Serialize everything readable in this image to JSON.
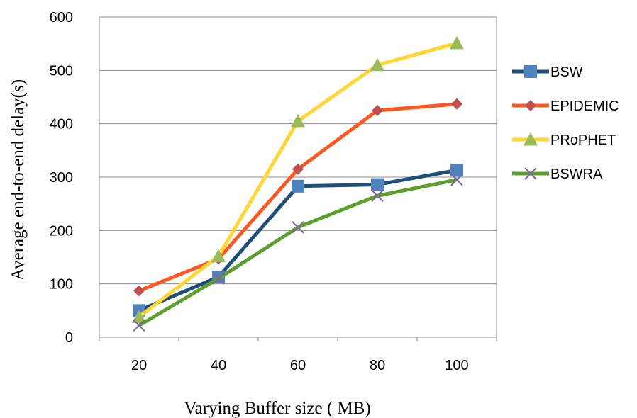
{
  "chart_data": {
    "type": "line",
    "title": "",
    "xlabel": "Varying Buffer size ( MB)",
    "ylabel": "Average end-to-end  delay(s)",
    "categories": [
      "20",
      "40",
      "60",
      "80",
      "100"
    ],
    "ylim": [
      0,
      600
    ],
    "yticks": [
      0,
      100,
      200,
      300,
      400,
      500,
      600
    ],
    "grid": "horizontal",
    "legend_position": "right",
    "series": [
      {
        "name": "BSW",
        "values": [
          50,
          113,
          283,
          286,
          313
        ],
        "color": "#1F4E79",
        "marker_color": "#4F81BD",
        "marker": "square"
      },
      {
        "name": "EPIDEMIC",
        "values": [
          87,
          147,
          315,
          425,
          437
        ],
        "color": "#FF5722",
        "marker_color": "#C0504D",
        "marker": "diamond"
      },
      {
        "name": "PRoPHET",
        "values": [
          38,
          152,
          405,
          510,
          551
        ],
        "color": "#FFD633",
        "marker_color": "#9BBB59",
        "marker": "triangle"
      },
      {
        "name": "BSWRA",
        "values": [
          22,
          110,
          206,
          265,
          295
        ],
        "color": "#5D9E2E",
        "marker_color": "#8064A2",
        "marker": "x"
      }
    ]
  }
}
